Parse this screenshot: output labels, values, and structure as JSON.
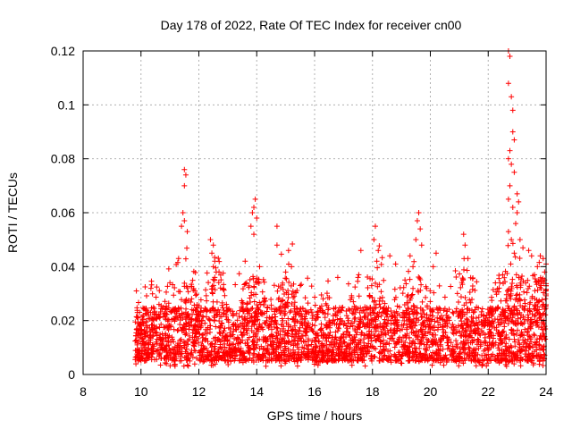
{
  "chart_data": {
    "type": "scatter",
    "title": "Day 178 of 2022, Rate Of TEC Index for receiver cn00",
    "xlabel": "GPS time / hours",
    "ylabel": "ROTI / TECUs",
    "xlim": [
      8,
      24
    ],
    "ylim": [
      0,
      0.12
    ],
    "x_ticks": [
      "8",
      "10",
      "12",
      "14",
      "16",
      "18",
      "20",
      "22",
      "24"
    ],
    "y_ticks": [
      "0",
      "0.02",
      "0.04",
      "0.06",
      "0.08",
      "0.1",
      "0.12"
    ],
    "grid": true,
    "marker": "+",
    "series_color": "#ff0000",
    "series": [
      {
        "name": "ROTI",
        "description_dense_band": {
          "x_start": 9.8,
          "x_end": 24.0,
          "typical_min": 0.005,
          "typical_max": 0.025
        },
        "points": [
          [
            11.5,
            0.076
          ],
          [
            11.55,
            0.074
          ],
          [
            11.5,
            0.07
          ],
          [
            11.45,
            0.06
          ],
          [
            11.5,
            0.057
          ],
          [
            11.4,
            0.055
          ],
          [
            11.6,
            0.053
          ],
          [
            11.3,
            0.043
          ],
          [
            11.0,
            0.034
          ],
          [
            12.4,
            0.05
          ],
          [
            12.5,
            0.048
          ],
          [
            12.45,
            0.045
          ],
          [
            12.55,
            0.042
          ],
          [
            12.5,
            0.04
          ],
          [
            12.6,
            0.038
          ],
          [
            12.55,
            0.036
          ],
          [
            13.95,
            0.065
          ],
          [
            13.9,
            0.062
          ],
          [
            13.85,
            0.06
          ],
          [
            14.0,
            0.058
          ],
          [
            13.8,
            0.055
          ],
          [
            13.9,
            0.052
          ],
          [
            13.6,
            0.042
          ],
          [
            14.1,
            0.04
          ],
          [
            14.7,
            0.055
          ],
          [
            14.7,
            0.048
          ],
          [
            15.1,
            0.046
          ],
          [
            15.2,
            0.04
          ],
          [
            15.0,
            0.038
          ],
          [
            16.8,
            0.036
          ],
          [
            17.6,
            0.046
          ],
          [
            17.5,
            0.036
          ],
          [
            18.1,
            0.055
          ],
          [
            18.05,
            0.05
          ],
          [
            18.2,
            0.046
          ],
          [
            18.15,
            0.042
          ],
          [
            18.6,
            0.044
          ],
          [
            18.8,
            0.041
          ],
          [
            19.6,
            0.06
          ],
          [
            19.55,
            0.057
          ],
          [
            19.65,
            0.054
          ],
          [
            19.5,
            0.05
          ],
          [
            19.7,
            0.048
          ],
          [
            19.3,
            0.044
          ],
          [
            19.4,
            0.04
          ],
          [
            20.2,
            0.045
          ],
          [
            20.1,
            0.04
          ],
          [
            21.15,
            0.052
          ],
          [
            21.2,
            0.048
          ],
          [
            21.3,
            0.043
          ],
          [
            22.5,
            0.037
          ],
          [
            22.4,
            0.034
          ],
          [
            22.7,
            0.12
          ],
          [
            22.75,
            0.118
          ],
          [
            22.7,
            0.108
          ],
          [
            22.8,
            0.103
          ],
          [
            22.85,
            0.098
          ],
          [
            22.85,
            0.09
          ],
          [
            22.9,
            0.087
          ],
          [
            22.75,
            0.083
          ],
          [
            22.7,
            0.08
          ],
          [
            22.8,
            0.078
          ],
          [
            22.9,
            0.075
          ],
          [
            22.75,
            0.07
          ],
          [
            22.7,
            0.065
          ],
          [
            22.85,
            0.062
          ],
          [
            23.0,
            0.067
          ],
          [
            23.05,
            0.064
          ],
          [
            23.0,
            0.06
          ],
          [
            22.95,
            0.056
          ],
          [
            22.7,
            0.053
          ],
          [
            22.8,
            0.05
          ],
          [
            23.1,
            0.05
          ],
          [
            23.2,
            0.047
          ],
          [
            23.4,
            0.046
          ],
          [
            23.5,
            0.044
          ],
          [
            22.9,
            0.045
          ],
          [
            23.8,
            0.044
          ],
          [
            23.9,
            0.043
          ],
          [
            24.0,
            0.041
          ],
          [
            23.7,
            0.04
          ],
          [
            23.95,
            0.038
          ],
          [
            23.6,
            0.037
          ]
        ]
      }
    ]
  }
}
